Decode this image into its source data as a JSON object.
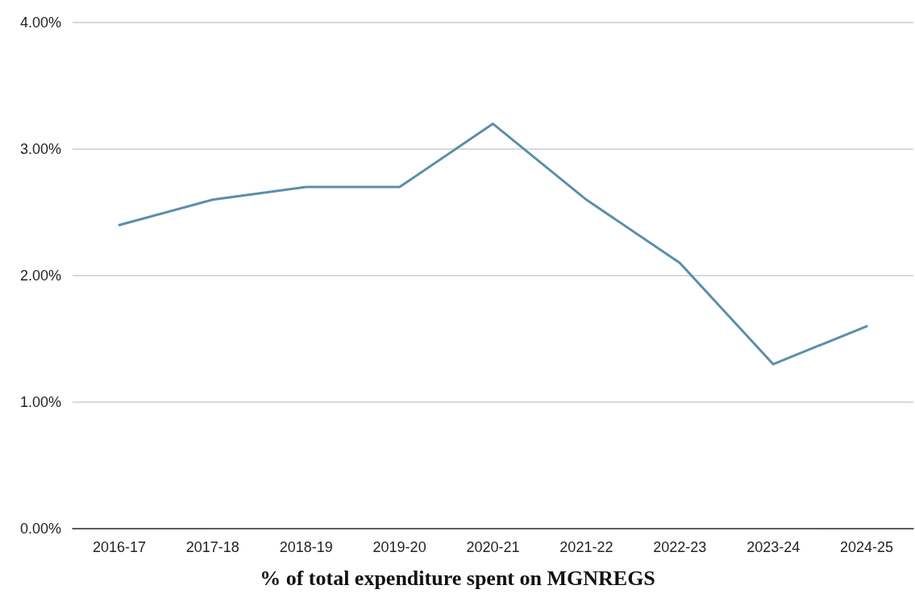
{
  "chart_data": {
    "type": "line",
    "title": "% of total expenditure spent on MGNREGS",
    "categories": [
      "2016-17",
      "2017-18",
      "2018-19",
      "2019-20",
      "2020-21",
      "2021-22",
      "2022-23",
      "2023-24",
      "2024-25"
    ],
    "series": [
      {
        "color": "#5a8fab",
        "values": [
          2.4,
          2.6,
          2.7,
          2.7,
          3.2,
          2.6,
          2.1,
          1.3,
          1.6
        ]
      }
    ],
    "ylim": [
      0,
      4
    ],
    "yticks": [
      {
        "value": 0,
        "label": "0.00%"
      },
      {
        "value": 1,
        "label": "1.00%"
      },
      {
        "value": 2,
        "label": "2.00%"
      },
      {
        "value": 3,
        "label": "3.00%"
      },
      {
        "value": 4,
        "label": "4.00%"
      }
    ],
    "grid": "y",
    "marker": "none",
    "line_style": "solid"
  }
}
